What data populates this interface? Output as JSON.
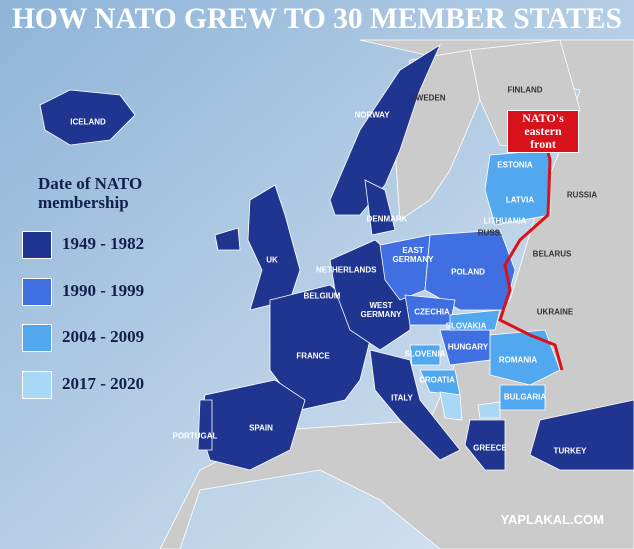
{
  "title": "HOW NATO GREW TO 30 MEMBER STATES",
  "legend": {
    "title": "Date of NATO membership",
    "items": [
      {
        "label": "1949 - 1982",
        "color": "#1f3590"
      },
      {
        "label": "1990 - 1999",
        "color": "#3f6fe0"
      },
      {
        "label": "2004 - 2009",
        "color": "#52a8ee"
      },
      {
        "label": "2017 - 2020",
        "color": "#a9d8f7"
      }
    ]
  },
  "annotation": "NATO's eastern front",
  "countries": [
    {
      "name": "ICELAND"
    },
    {
      "name": "NORWAY"
    },
    {
      "name": "SWEDEN"
    },
    {
      "name": "FINLAND"
    },
    {
      "name": "ESTONIA"
    },
    {
      "name": "LATVIA"
    },
    {
      "name": "LITHUANIA"
    },
    {
      "name": "RUSS."
    },
    {
      "name": "RUSSIA"
    },
    {
      "name": "DENMARK"
    },
    {
      "name": "EAST GERMANY"
    },
    {
      "name": "POLAND"
    },
    {
      "name": "BELARUS"
    },
    {
      "name": "UK"
    },
    {
      "name": "NETHERLANDS"
    },
    {
      "name": "BELGIUM"
    },
    {
      "name": "WEST GERMANY"
    },
    {
      "name": "CZECHIA"
    },
    {
      "name": "SLOVAKIA"
    },
    {
      "name": "UKRAINE"
    },
    {
      "name": "FRANCE"
    },
    {
      "name": "HUNGARY"
    },
    {
      "name": "ROMANIA"
    },
    {
      "name": "SLOVENIA"
    },
    {
      "name": "CROATIA"
    },
    {
      "name": "BULGARIA"
    },
    {
      "name": "ITALY"
    },
    {
      "name": "PORTUGAL"
    },
    {
      "name": "SPAIN"
    },
    {
      "name": "GREECE"
    },
    {
      "name": "TURKEY"
    }
  ],
  "watermark": "YAPLAKAL.COM"
}
